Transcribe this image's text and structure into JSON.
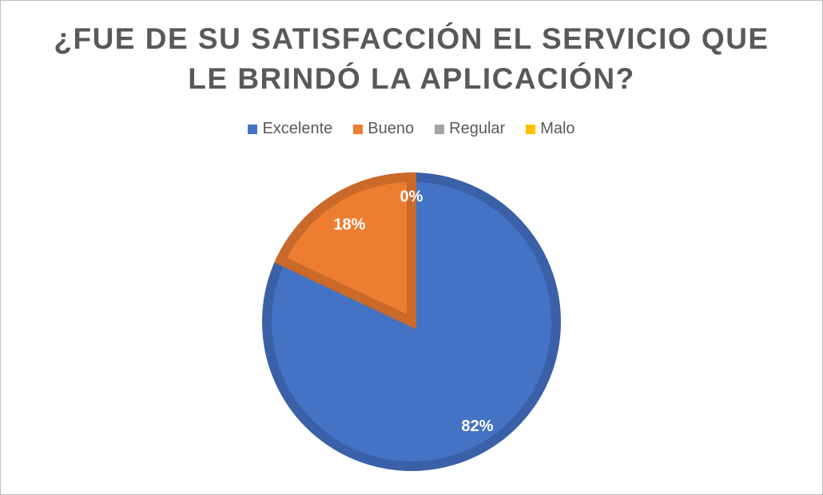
{
  "chart_data": {
    "type": "pie",
    "title": "¿FUE DE SU SATISFACCIÓN EL SERVICIO QUE LE BRINDÓ LA APLICACIÓN?",
    "title_lines": [
      "¿FUE DE SU SATISFACCIÓN EL SERVICIO QUE",
      "LE BRINDÓ LA APLICACIÓN?"
    ],
    "categories": [
      "Excelente",
      "Bueno",
      "Regular",
      "Malo"
    ],
    "values": [
      82,
      18,
      0,
      0
    ],
    "data_labels": [
      "82%",
      "18%",
      "0%",
      "0%"
    ],
    "colors": [
      "#4472C4",
      "#ED7D31",
      "#A5A5A5",
      "#FFC000"
    ],
    "legend_position": "top"
  }
}
